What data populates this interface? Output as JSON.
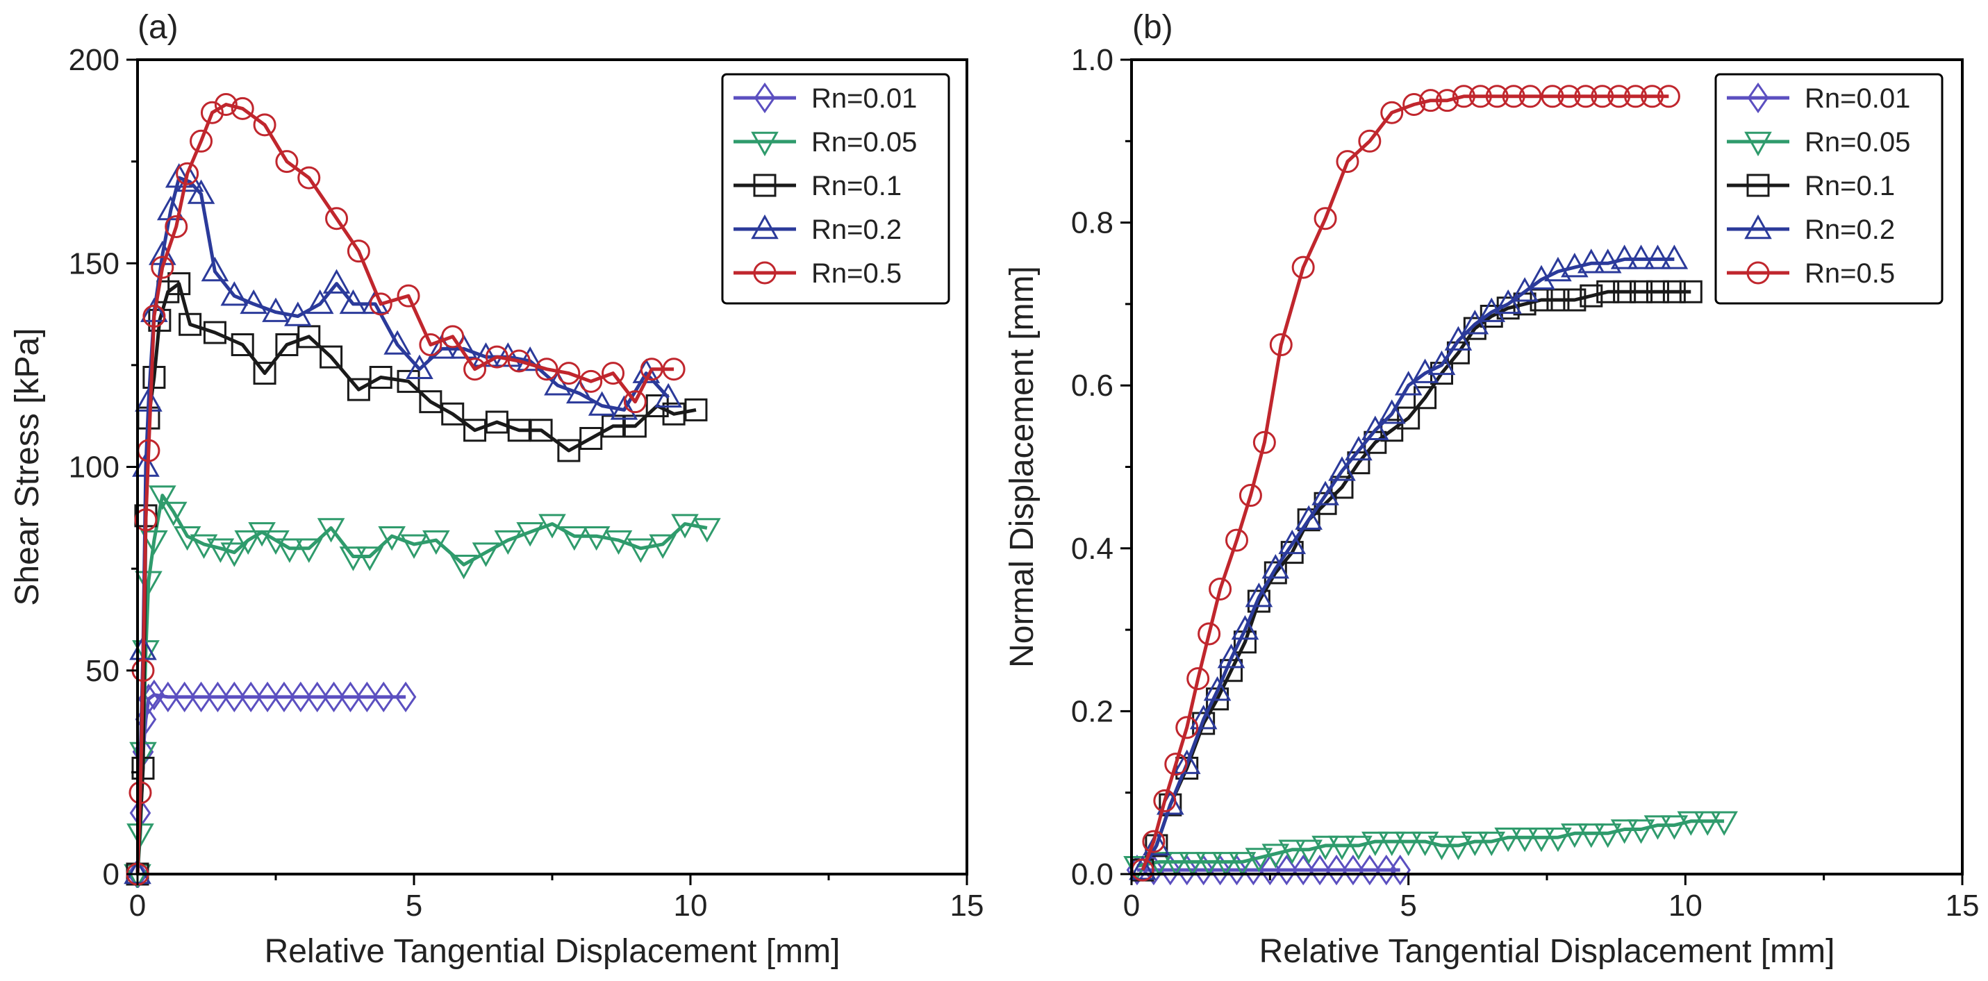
{
  "series_styles": [
    {
      "name": "Rn=0.01",
      "color": "#5b4fc0",
      "marker": "diamond"
    },
    {
      "name": "Rn=0.05",
      "color": "#2f9b6c",
      "marker": "triangle-down"
    },
    {
      "name": "Rn=0.1",
      "color": "#1a1a1a",
      "marker": "square"
    },
    {
      "name": "Rn=0.2",
      "color": "#2b3a9a",
      "marker": "triangle-up"
    },
    {
      "name": "Rn=0.5",
      "color": "#c0262d",
      "marker": "circle"
    }
  ],
  "chart_data": [
    {
      "type": "line",
      "panel_label": "(a)",
      "xlabel": "Relative Tangential Displacement [mm]",
      "ylabel": "Shear Stress [kPa]",
      "xlim": [
        0,
        15
      ],
      "ylim": [
        0,
        200
      ],
      "xticks": [
        0,
        5,
        10,
        15
      ],
      "xtick_labels": [
        "0",
        "5",
        "10",
        "15"
      ],
      "yticks": [
        0,
        50,
        100,
        150,
        200
      ],
      "ytick_labels": [
        "0",
        "50",
        "100",
        "150",
        "200"
      ],
      "legend_position": "top-right",
      "series": [
        {
          "name": "Rn=0.01",
          "x": [
            0,
            0.05,
            0.1,
            0.15,
            0.2,
            0.3,
            0.55,
            0.85,
            1.15,
            1.45,
            1.75,
            2.05,
            2.35,
            2.65,
            2.95,
            3.25,
            3.55,
            3.85,
            4.15,
            4.45,
            4.85
          ],
          "y": [
            0,
            15,
            30,
            38,
            43,
            44,
            43.5,
            43.5,
            43.5,
            43.5,
            43.5,
            43.5,
            43.5,
            43.5,
            43.5,
            43.5,
            43.5,
            43.5,
            43.5,
            43.5,
            43.5
          ]
        },
        {
          "name": "Rn=0.05",
          "x": [
            0,
            0.05,
            0.1,
            0.15,
            0.2,
            0.3,
            0.45,
            0.65,
            0.9,
            1.2,
            1.5,
            1.75,
            2.0,
            2.25,
            2.5,
            2.75,
            3.1,
            3.5,
            3.9,
            4.2,
            4.6,
            5.0,
            5.4,
            5.9,
            6.3,
            6.7,
            7.1,
            7.5,
            7.9,
            8.3,
            8.7,
            9.1,
            9.5,
            9.9,
            10.3
          ],
          "y": [
            0,
            10,
            30,
            55,
            72,
            82,
            93,
            89,
            83,
            81,
            80,
            79,
            82,
            84,
            82,
            80,
            80,
            85,
            78,
            78,
            83,
            81,
            82,
            76,
            79,
            82,
            84,
            86,
            83,
            83,
            82,
            80,
            81,
            86,
            85
          ]
        },
        {
          "name": "Rn=0.1",
          "x": [
            0,
            0.1,
            0.15,
            0.2,
            0.3,
            0.4,
            0.55,
            0.75,
            0.95,
            1.4,
            1.9,
            2.3,
            2.7,
            3.1,
            3.5,
            4.0,
            4.4,
            4.9,
            5.3,
            5.7,
            6.1,
            6.5,
            6.9,
            7.3,
            7.8,
            8.2,
            8.6,
            9.0,
            9.4,
            9.7,
            10.1
          ],
          "y": [
            0,
            26,
            88,
            112,
            122,
            136,
            143,
            145,
            135,
            133,
            130,
            123,
            130,
            132,
            127,
            119,
            122,
            121,
            116,
            113,
            109,
            111,
            109,
            109,
            104,
            107,
            110,
            110,
            115,
            113,
            114
          ]
        },
        {
          "name": "Rn=0.2",
          "x": [
            0,
            0.1,
            0.15,
            0.2,
            0.3,
            0.45,
            0.6,
            0.75,
            0.95,
            1.15,
            1.4,
            1.75,
            2.1,
            2.5,
            2.9,
            3.3,
            3.6,
            3.9,
            4.3,
            4.7,
            5.1,
            5.5,
            5.9,
            6.3,
            6.7,
            7.1,
            7.6,
            8.0,
            8.4,
            8.8,
            9.2,
            9.6
          ],
          "y": [
            0,
            55,
            100,
            116,
            138,
            152,
            163,
            171,
            170,
            167,
            148,
            142,
            140,
            138,
            137,
            140,
            145,
            140,
            140,
            130,
            124,
            129,
            129,
            127,
            127,
            126,
            120,
            118,
            115,
            114,
            123,
            117
          ]
        },
        {
          "name": "Rn=0.5",
          "x": [
            0,
            0.05,
            0.1,
            0.15,
            0.2,
            0.3,
            0.45,
            0.7,
            0.9,
            1.15,
            1.35,
            1.6,
            1.9,
            2.3,
            2.7,
            3.1,
            3.6,
            4.0,
            4.4,
            4.9,
            5.3,
            5.7,
            6.1,
            6.5,
            6.9,
            7.4,
            7.8,
            8.2,
            8.6,
            9.0,
            9.3,
            9.7
          ],
          "y": [
            0,
            20,
            50,
            87,
            104,
            137,
            149,
            159,
            172,
            180,
            187,
            189,
            188,
            184,
            175,
            171,
            161,
            153,
            140,
            142,
            130,
            132,
            124,
            127,
            126,
            124,
            123,
            121,
            123,
            116,
            124,
            124
          ]
        }
      ]
    },
    {
      "type": "line",
      "panel_label": "(b)",
      "xlabel": "Relative Tangential Displacement [mm]",
      "ylabel": "Normal Displacement [mm]",
      "xlim": [
        0,
        15
      ],
      "ylim": [
        0,
        1.0
      ],
      "xticks": [
        0,
        5,
        10,
        15
      ],
      "xtick_labels": [
        "0",
        "5",
        "10",
        "15"
      ],
      "yticks": [
        0,
        0.2,
        0.4,
        0.6,
        0.8,
        1.0
      ],
      "ytick_labels": [
        "0.0",
        "0.2",
        "0.4",
        "0.6",
        "0.8",
        "1.0"
      ],
      "legend_position": "top-right",
      "series": [
        {
          "name": "Rn=0.01",
          "x": [
            0.1,
            0.4,
            0.7,
            1.0,
            1.3,
            1.6,
            1.9,
            2.2,
            2.5,
            2.8,
            3.1,
            3.4,
            3.7,
            4.0,
            4.3,
            4.6,
            4.85
          ],
          "y": [
            0.005,
            0.005,
            0.005,
            0.005,
            0.005,
            0.005,
            0.005,
            0.005,
            0.005,
            0.005,
            0.005,
            0.005,
            0.005,
            0.005,
            0.005,
            0.005,
            0.005
          ]
        },
        {
          "name": "Rn=0.05",
          "x": [
            0.1,
            0.5,
            0.8,
            1.1,
            1.4,
            1.7,
            2.0,
            2.3,
            2.6,
            2.9,
            3.2,
            3.5,
            3.8,
            4.1,
            4.4,
            4.7,
            5.0,
            5.3,
            5.6,
            5.9,
            6.2,
            6.5,
            6.8,
            7.1,
            7.4,
            7.7,
            8.0,
            8.3,
            8.6,
            8.9,
            9.2,
            9.5,
            9.8,
            10.1,
            10.4,
            10.7
          ],
          "y": [
            0.01,
            0.015,
            0.015,
            0.015,
            0.015,
            0.015,
            0.015,
            0.02,
            0.025,
            0.03,
            0.03,
            0.035,
            0.035,
            0.035,
            0.04,
            0.04,
            0.04,
            0.04,
            0.035,
            0.035,
            0.04,
            0.04,
            0.045,
            0.045,
            0.045,
            0.045,
            0.05,
            0.05,
            0.05,
            0.055,
            0.055,
            0.06,
            0.06,
            0.065,
            0.065,
            0.065
          ]
        },
        {
          "name": "Rn=0.1",
          "x": [
            0.2,
            0.45,
            0.7,
            1.0,
            1.3,
            1.55,
            1.8,
            2.05,
            2.3,
            2.6,
            2.9,
            3.2,
            3.5,
            3.8,
            4.1,
            4.4,
            4.7,
            5.0,
            5.3,
            5.6,
            5.9,
            6.2,
            6.5,
            6.8,
            7.1,
            7.4,
            7.7,
            8.0,
            8.3,
            8.6,
            8.9,
            9.2,
            9.5,
            9.8,
            10.1
          ],
          "y": [
            0.005,
            0.035,
            0.085,
            0.13,
            0.185,
            0.215,
            0.25,
            0.285,
            0.335,
            0.37,
            0.395,
            0.435,
            0.455,
            0.475,
            0.505,
            0.53,
            0.545,
            0.56,
            0.585,
            0.615,
            0.64,
            0.67,
            0.685,
            0.695,
            0.7,
            0.705,
            0.705,
            0.705,
            0.71,
            0.715,
            0.715,
            0.715,
            0.715,
            0.715,
            0.715
          ]
        },
        {
          "name": "Rn=0.2",
          "x": [
            0.2,
            0.45,
            0.7,
            1.0,
            1.3,
            1.55,
            1.8,
            2.05,
            2.3,
            2.6,
            2.9,
            3.2,
            3.5,
            3.8,
            4.1,
            4.4,
            4.7,
            5.0,
            5.3,
            5.6,
            5.9,
            6.2,
            6.5,
            6.8,
            7.1,
            7.4,
            7.7,
            8.0,
            8.3,
            8.6,
            8.9,
            9.2,
            9.5,
            9.8
          ],
          "y": [
            0.005,
            0.035,
            0.085,
            0.135,
            0.19,
            0.225,
            0.265,
            0.3,
            0.34,
            0.375,
            0.405,
            0.435,
            0.465,
            0.495,
            0.52,
            0.545,
            0.565,
            0.6,
            0.615,
            0.625,
            0.655,
            0.675,
            0.69,
            0.7,
            0.715,
            0.73,
            0.74,
            0.745,
            0.75,
            0.75,
            0.755,
            0.755,
            0.755,
            0.755
          ]
        },
        {
          "name": "Rn=0.5",
          "x": [
            0.2,
            0.4,
            0.6,
            0.8,
            1.0,
            1.2,
            1.4,
            1.6,
            1.9,
            2.15,
            2.4,
            2.7,
            3.1,
            3.5,
            3.9,
            4.3,
            4.7,
            5.1,
            5.4,
            5.7,
            6.0,
            6.3,
            6.6,
            6.9,
            7.2,
            7.6,
            7.9,
            8.2,
            8.5,
            8.8,
            9.1,
            9.4,
            9.7
          ],
          "y": [
            0.005,
            0.04,
            0.09,
            0.135,
            0.18,
            0.24,
            0.295,
            0.35,
            0.41,
            0.465,
            0.53,
            0.65,
            0.745,
            0.805,
            0.875,
            0.9,
            0.935,
            0.945,
            0.95,
            0.95,
            0.955,
            0.955,
            0.955,
            0.955,
            0.955,
            0.955,
            0.955,
            0.955,
            0.955,
            0.955,
            0.955,
            0.955,
            0.955
          ]
        }
      ]
    }
  ]
}
